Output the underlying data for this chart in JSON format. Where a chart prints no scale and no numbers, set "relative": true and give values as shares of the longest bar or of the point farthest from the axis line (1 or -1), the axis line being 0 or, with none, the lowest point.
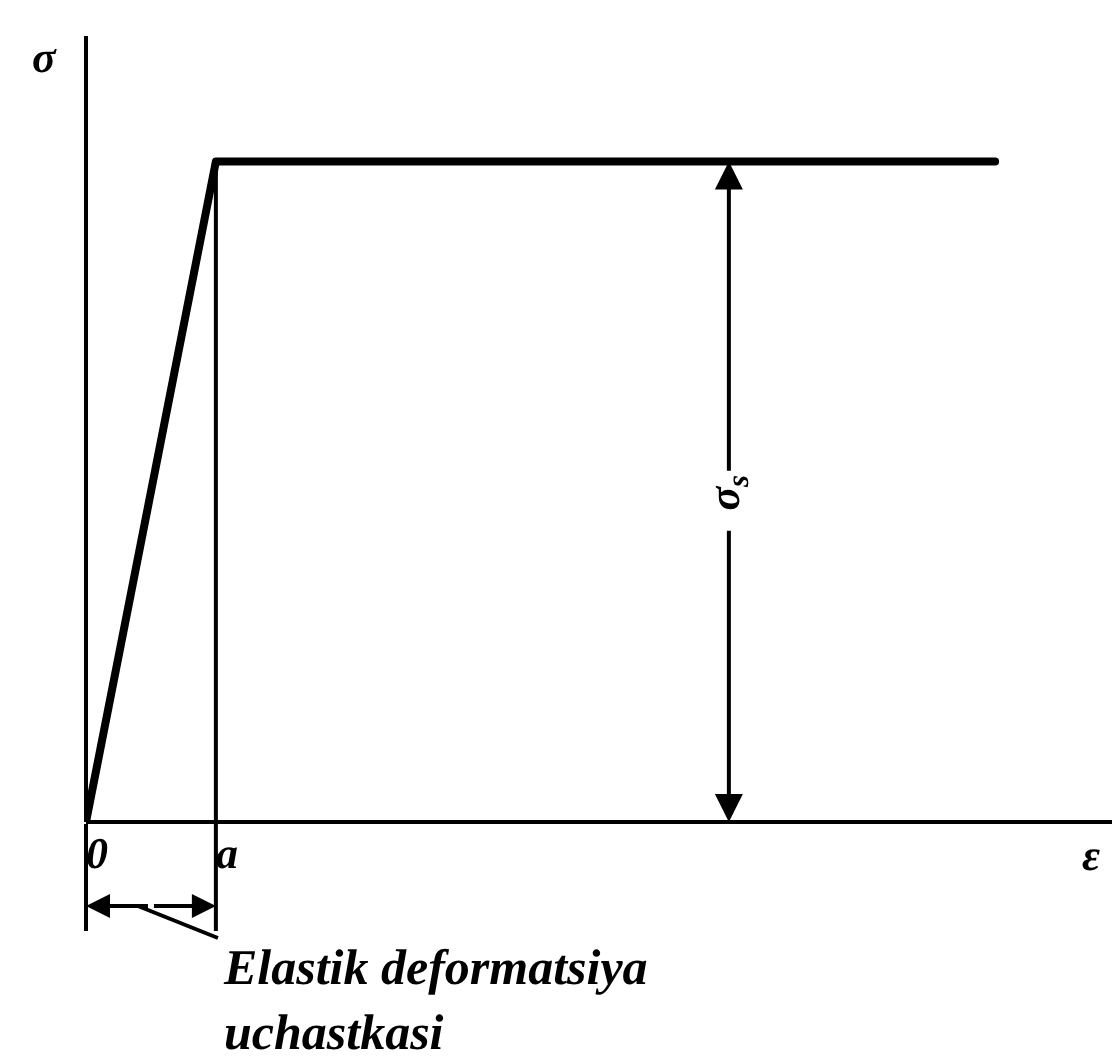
{
  "chart_data": {
    "type": "line",
    "xlabel": "ε",
    "ylabel": "σ",
    "categories": [
      "0",
      "a",
      null,
      null,
      null,
      null,
      null,
      null
    ],
    "values": [
      0,
      1,
      1,
      1,
      1,
      1,
      1,
      1
    ],
    "color": "#000000",
    "relative": true,
    "ref_lines": [
      {
        "axis": "x",
        "value": "a"
      }
    ],
    "annotations": [
      "σ$_{s}$",
      "Elastik deformatsiya\nuchastkasi"
    ],
    "grid": false,
    "marker": "none",
    "line_style": "solid"
  }
}
